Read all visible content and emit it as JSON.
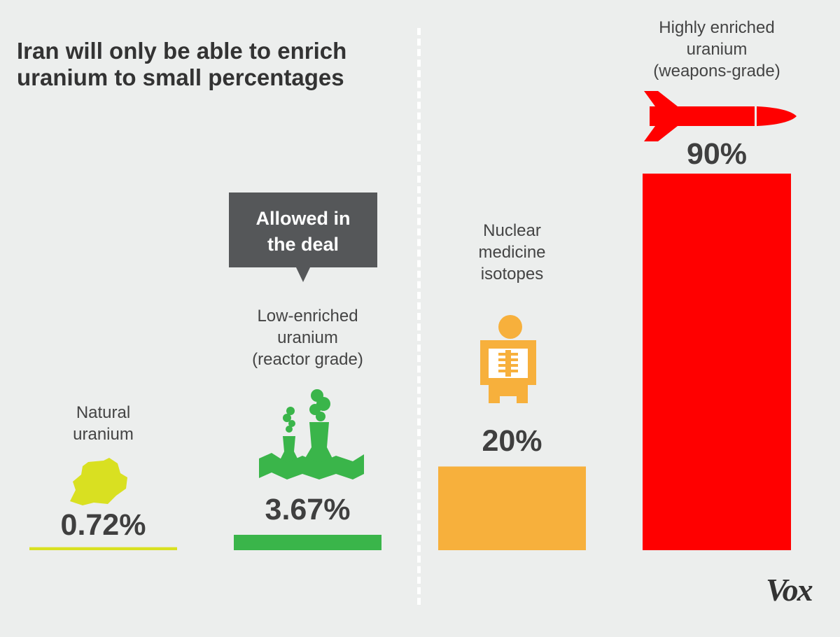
{
  "title": "Iran will only be able to enrich\nuranium to small percentages",
  "callout": "Allowed in\nthe deal",
  "logo": "Vox",
  "colors": {
    "background": "#eceeed",
    "natural": "#d9e021",
    "low_enriched": "#3ab54a",
    "medicine": "#f7b03c",
    "weapons": "#ff0000",
    "text": "#3f3f3f"
  },
  "icons": [
    "uranium-rock-icon",
    "cooling-tower-icon",
    "xray-icon",
    "missile-icon"
  ],
  "chart_data": {
    "type": "bar",
    "title": "Iran will only be able to enrich uranium to small percentages",
    "categories": [
      "Natural\nuranium",
      "Low-enriched\nuranium\n(reactor grade)",
      "Nuclear\nmedicine\nisotopes",
      "Highly enriched\nuranium\n(weapons-grade)"
    ],
    "values": [
      0.72,
      3.67,
      20,
      90
    ],
    "value_labels": [
      "0.72%",
      "3.67%",
      "20%",
      "90%"
    ],
    "ylim": [
      0,
      100
    ],
    "unit": "%",
    "grid": false,
    "legend": "none"
  }
}
